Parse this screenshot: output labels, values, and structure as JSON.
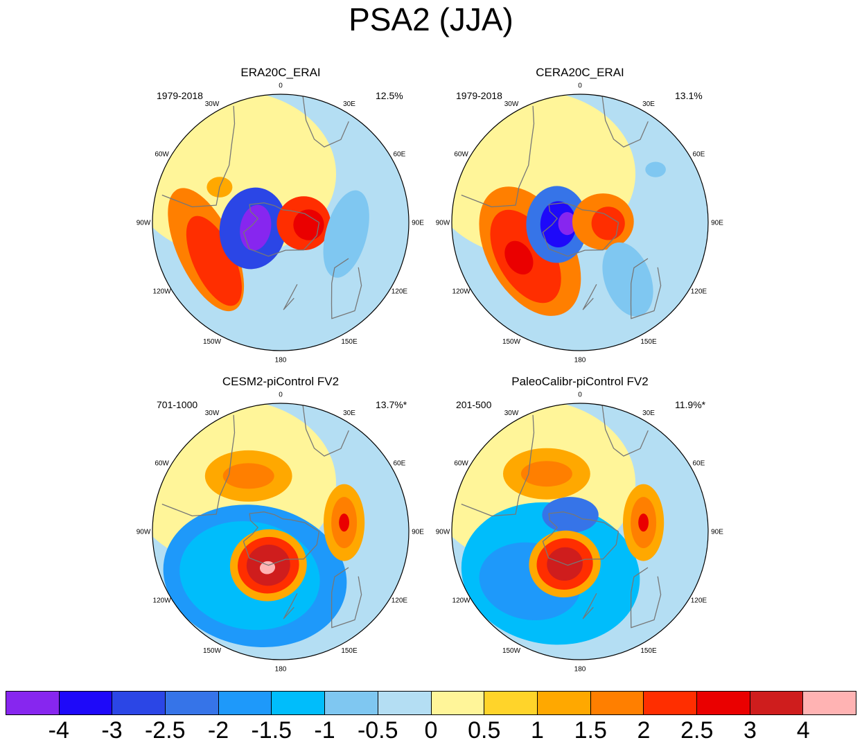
{
  "title": "PSA2 (JJA)",
  "panels": [
    {
      "title": "ERA20C_ERAI",
      "period": "1979-2018",
      "percent": "12.5%",
      "blobs": [
        {
          "r": 0.62,
          "a": 250,
          "rx": 0.22,
          "ry": 0.52,
          "rot": -25,
          "level": 11
        },
        {
          "r": 0.6,
          "a": 240,
          "rx": 0.16,
          "ry": 0.38,
          "rot": -25,
          "level": 12
        },
        {
          "r": 0.22,
          "a": 258,
          "rx": 0.26,
          "ry": 0.32,
          "rot": 10,
          "level": 2
        },
        {
          "r": 0.2,
          "a": 258,
          "rx": 0.12,
          "ry": 0.18,
          "rot": 10,
          "level": 0
        },
        {
          "r": 0.18,
          "a": 92,
          "rx": 0.21,
          "ry": 0.21,
          "rot": 0,
          "level": 12
        },
        {
          "r": 0.22,
          "a": 95,
          "rx": 0.12,
          "ry": 0.12,
          "rot": 0,
          "level": 13
        },
        {
          "r": 0.52,
          "a": 100,
          "rx": 0.16,
          "ry": 0.35,
          "rot": 15,
          "level": 6
        },
        {
          "r": 0.55,
          "a": 300,
          "rx": 0.1,
          "ry": 0.08,
          "rot": 0,
          "level": 10
        }
      ]
    },
    {
      "title": "CERA20C_ERAI",
      "period": "1979-2018",
      "percent": "13.1%",
      "blobs": [
        {
          "r": 0.45,
          "a": 240,
          "rx": 0.33,
          "ry": 0.55,
          "rot": -30,
          "level": 11
        },
        {
          "r": 0.5,
          "a": 238,
          "rx": 0.22,
          "ry": 0.4,
          "rot": -30,
          "level": 12
        },
        {
          "r": 0.55,
          "a": 240,
          "rx": 0.1,
          "ry": 0.14,
          "rot": -30,
          "level": 13
        },
        {
          "r": 0.18,
          "a": 265,
          "rx": 0.24,
          "ry": 0.3,
          "rot": 0,
          "level": 3
        },
        {
          "r": 0.17,
          "a": 265,
          "rx": 0.14,
          "ry": 0.18,
          "rot": 0,
          "level": 1
        },
        {
          "r": 0.1,
          "a": 265,
          "rx": 0.07,
          "ry": 0.09,
          "rot": 0,
          "level": 0
        },
        {
          "r": 0.18,
          "a": 88,
          "rx": 0.24,
          "ry": 0.22,
          "rot": 0,
          "level": 11
        },
        {
          "r": 0.22,
          "a": 92,
          "rx": 0.13,
          "ry": 0.13,
          "rot": 0,
          "level": 12
        },
        {
          "r": 0.58,
          "a": 140,
          "rx": 0.18,
          "ry": 0.3,
          "rot": -20,
          "level": 6
        },
        {
          "r": 0.72,
          "a": 55,
          "rx": 0.08,
          "ry": 0.06,
          "rot": 0,
          "level": 6
        }
      ]
    },
    {
      "title": "CESM2-piControl FV2",
      "period": "701-1000",
      "percent": "13.7%*",
      "blobs": [
        {
          "r": 0.4,
          "a": 210,
          "rx": 0.72,
          "ry": 0.55,
          "rot": 10,
          "level": 4
        },
        {
          "r": 0.42,
          "a": 215,
          "rx": 0.55,
          "ry": 0.42,
          "rot": 10,
          "level": 5
        },
        {
          "r": 0.5,
          "a": 330,
          "rx": 0.34,
          "ry": 0.2,
          "rot": 0,
          "level": 10
        },
        {
          "r": 0.5,
          "a": 330,
          "rx": 0.2,
          "ry": 0.1,
          "rot": 0,
          "level": 11
        },
        {
          "r": 0.5,
          "a": 82,
          "rx": 0.16,
          "ry": 0.3,
          "rot": 0,
          "level": 10
        },
        {
          "r": 0.5,
          "a": 82,
          "rx": 0.1,
          "ry": 0.2,
          "rot": 0,
          "level": 11
        },
        {
          "r": 0.5,
          "a": 82,
          "rx": 0.04,
          "ry": 0.07,
          "rot": 0,
          "level": 13
        },
        {
          "r": 0.28,
          "a": 200,
          "rx": 0.3,
          "ry": 0.28,
          "rot": -10,
          "level": 10
        },
        {
          "r": 0.28,
          "a": 200,
          "rx": 0.24,
          "ry": 0.22,
          "rot": -10,
          "level": 12
        },
        {
          "r": 0.28,
          "a": 200,
          "rx": 0.17,
          "ry": 0.16,
          "rot": -10,
          "level": 14
        },
        {
          "r": 0.3,
          "a": 200,
          "rx": 0.06,
          "ry": 0.05,
          "rot": -10,
          "level": 15
        }
      ]
    },
    {
      "title": "PaleoCalibr-piControl FV2",
      "period": "201-500",
      "percent": "11.9%*",
      "blobs": [
        {
          "r": 0.4,
          "a": 215,
          "rx": 0.7,
          "ry": 0.55,
          "rot": 10,
          "level": 5
        },
        {
          "r": 0.55,
          "a": 225,
          "rx": 0.4,
          "ry": 0.3,
          "rot": 10,
          "level": 4
        },
        {
          "r": 0.15,
          "a": 330,
          "rx": 0.22,
          "ry": 0.14,
          "rot": 0,
          "level": 3
        },
        {
          "r": 0.52,
          "a": 330,
          "rx": 0.34,
          "ry": 0.2,
          "rot": 0,
          "level": 10
        },
        {
          "r": 0.52,
          "a": 330,
          "rx": 0.2,
          "ry": 0.1,
          "rot": 0,
          "level": 11
        },
        {
          "r": 0.5,
          "a": 82,
          "rx": 0.16,
          "ry": 0.3,
          "rot": 0,
          "level": 10
        },
        {
          "r": 0.5,
          "a": 82,
          "rx": 0.1,
          "ry": 0.2,
          "rot": 0,
          "level": 11
        },
        {
          "r": 0.5,
          "a": 82,
          "rx": 0.04,
          "ry": 0.07,
          "rot": 0,
          "level": 13
        },
        {
          "r": 0.28,
          "a": 205,
          "rx": 0.28,
          "ry": 0.26,
          "rot": -10,
          "level": 10
        },
        {
          "r": 0.28,
          "a": 205,
          "rx": 0.22,
          "ry": 0.2,
          "rot": -10,
          "level": 12
        },
        {
          "r": 0.28,
          "a": 205,
          "rx": 0.14,
          "ry": 0.13,
          "rot": -10,
          "level": 14
        }
      ]
    }
  ],
  "longitude_labels": [
    {
      "text": "0",
      "deg": 0
    },
    {
      "text": "30E",
      "deg": 30
    },
    {
      "text": "60E",
      "deg": 60
    },
    {
      "text": "90E",
      "deg": 90
    },
    {
      "text": "120E",
      "deg": 120
    },
    {
      "text": "150E",
      "deg": 150
    },
    {
      "text": "180",
      "deg": 180
    },
    {
      "text": "150W",
      "deg": 210
    },
    {
      "text": "120W",
      "deg": 240
    },
    {
      "text": "90W",
      "deg": 270
    },
    {
      "text": "60W",
      "deg": 300
    },
    {
      "text": "30W",
      "deg": 330
    }
  ],
  "colorbar": {
    "colors": [
      "#8726ef",
      "#1e09f9",
      "#2b46e6",
      "#3674e8",
      "#1e99fa",
      "#00bdfb",
      "#7fc7f1",
      "#b4def3",
      "#fff599",
      "#ffd42a",
      "#ffa800",
      "#ff7f00",
      "#ff2e00",
      "#ea0000",
      "#cf1d1d",
      "#ffb3b3"
    ],
    "labels": [
      "-4",
      "-3",
      "-2.5",
      "-2",
      "-1.5",
      "-1",
      "-0.5",
      "0",
      "0.5",
      "1",
      "1.5",
      "2",
      "2.5",
      "3",
      "4"
    ]
  }
}
